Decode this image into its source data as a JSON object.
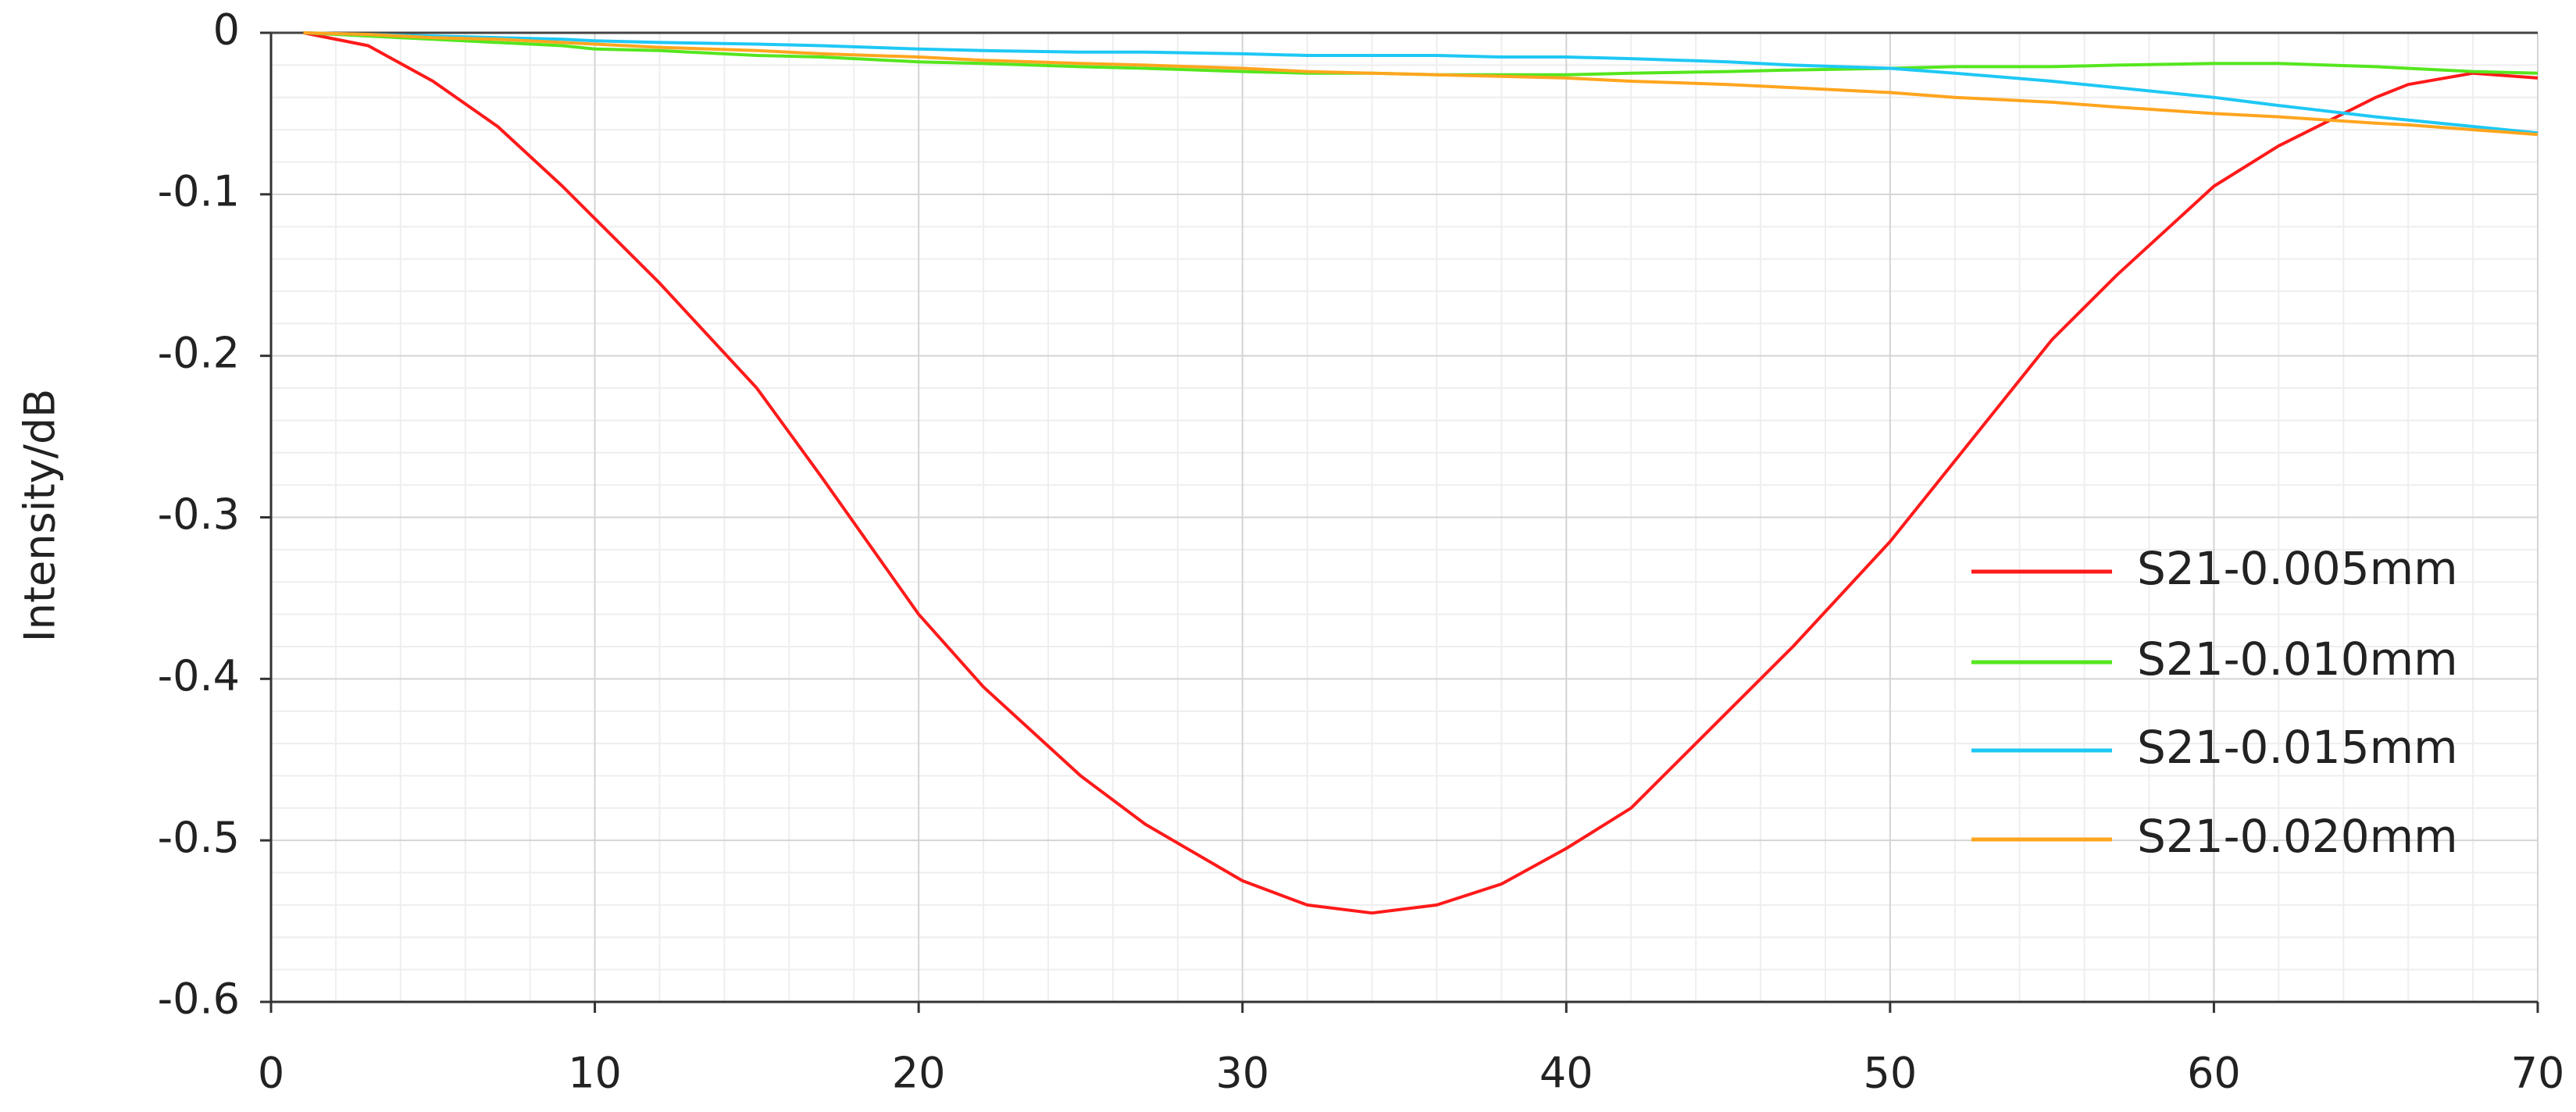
{
  "chart_data": {
    "type": "line",
    "y_label": "Intensity/dB",
    "x": [
      1,
      3,
      5,
      7,
      9,
      10,
      12,
      15,
      17,
      20,
      22,
      25,
      27,
      30,
      32,
      34,
      36,
      38,
      40,
      42,
      45,
      47,
      50,
      52,
      55,
      57,
      60,
      62,
      65,
      66,
      68,
      70
    ],
    "series": [
      {
        "name": "S21-0.005mm",
        "color": "#ff1a1a",
        "values": [
          0,
          -0.008,
          -0.03,
          -0.058,
          -0.095,
          -0.115,
          -0.155,
          -0.22,
          -0.275,
          -0.36,
          -0.405,
          -0.46,
          -0.49,
          -0.525,
          -0.54,
          -0.545,
          -0.54,
          -0.527,
          -0.505,
          -0.48,
          -0.42,
          -0.38,
          -0.315,
          -0.265,
          -0.19,
          -0.15,
          -0.095,
          -0.07,
          -0.04,
          -0.032,
          -0.025,
          -0.028
        ]
      },
      {
        "name": "S21-0.010mm",
        "color": "#55e61e",
        "values": [
          0,
          -0.002,
          -0.004,
          -0.006,
          -0.008,
          -0.01,
          -0.011,
          -0.014,
          -0.015,
          -0.018,
          -0.019,
          -0.021,
          -0.022,
          -0.024,
          -0.025,
          -0.025,
          -0.026,
          -0.026,
          -0.026,
          -0.025,
          -0.024,
          -0.023,
          -0.022,
          -0.021,
          -0.021,
          -0.02,
          -0.019,
          -0.019,
          -0.021,
          -0.022,
          -0.024,
          -0.025
        ]
      },
      {
        "name": "S21-0.015mm",
        "color": "#1ec8f5",
        "values": [
          0,
          -0.001,
          -0.002,
          -0.003,
          -0.004,
          -0.005,
          -0.006,
          -0.007,
          -0.008,
          -0.01,
          -0.011,
          -0.012,
          -0.012,
          -0.013,
          -0.014,
          -0.014,
          -0.014,
          -0.015,
          -0.015,
          -0.016,
          -0.018,
          -0.02,
          -0.022,
          -0.025,
          -0.03,
          -0.034,
          -0.04,
          -0.045,
          -0.052,
          -0.054,
          -0.058,
          -0.062
        ]
      },
      {
        "name": "S21-0.020mm",
        "color": "#ffa51e",
        "values": [
          0,
          -0.001,
          -0.003,
          -0.004,
          -0.006,
          -0.007,
          -0.009,
          -0.011,
          -0.013,
          -0.015,
          -0.017,
          -0.019,
          -0.02,
          -0.022,
          -0.024,
          -0.025,
          -0.026,
          -0.027,
          -0.028,
          -0.03,
          -0.032,
          -0.034,
          -0.037,
          -0.04,
          -0.043,
          -0.046,
          -0.05,
          -0.052,
          -0.056,
          -0.057,
          -0.06,
          -0.063
        ]
      }
    ],
    "xlim": [
      0,
      70
    ],
    "xticks": [
      0,
      10,
      20,
      30,
      40,
      50,
      60,
      70
    ],
    "ylim": [
      -0.6,
      0
    ],
    "yticks": [
      0,
      -0.1,
      -0.2,
      -0.3,
      -0.4,
      -0.5,
      -0.6
    ],
    "grid": true,
    "minor_grid": true,
    "legend": "right"
  }
}
